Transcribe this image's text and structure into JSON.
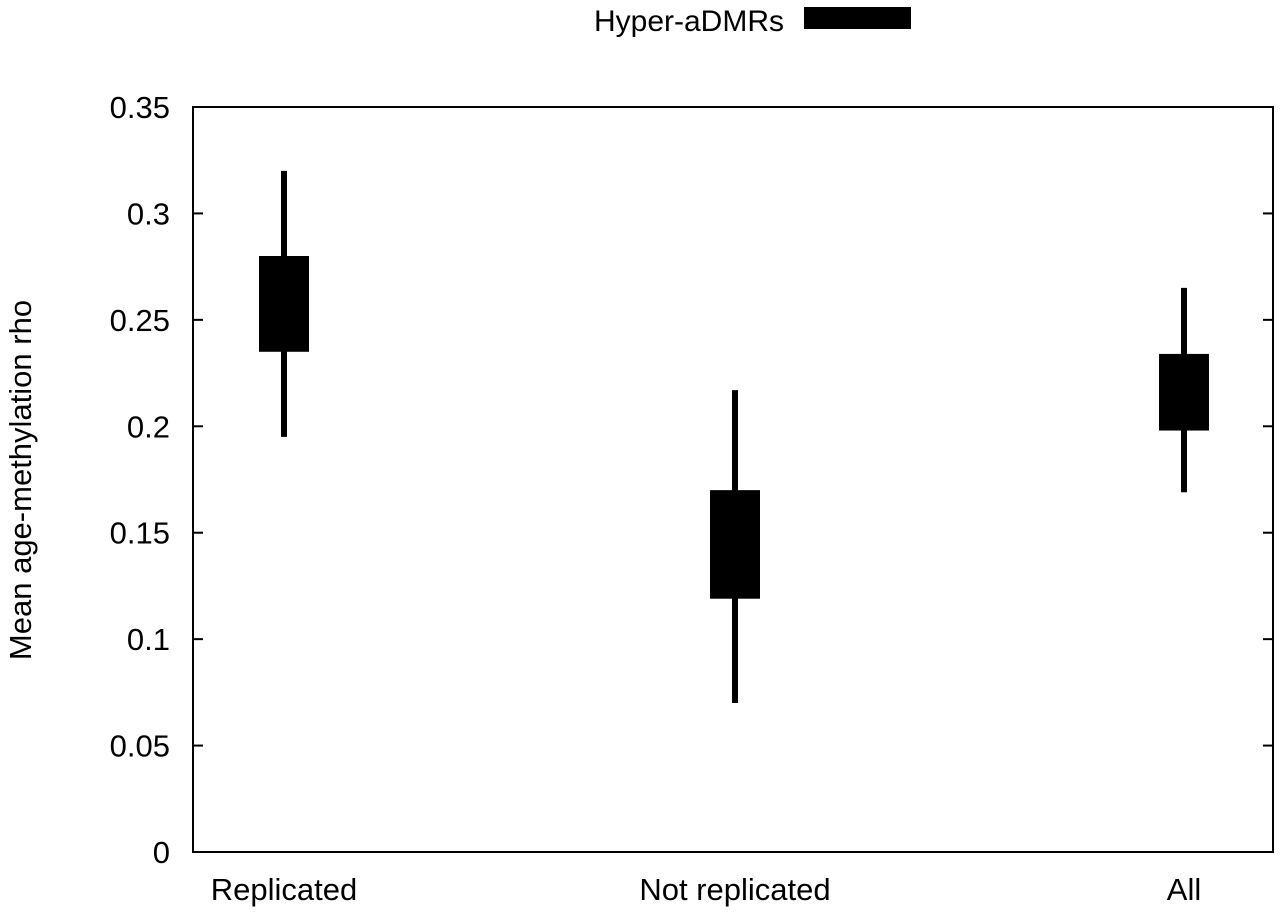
{
  "chart_data": {
    "type": "candlestick",
    "title": "",
    "xlabel": "",
    "ylabel": "Mean age-methylation rho",
    "categories": [
      "Replicated",
      "Not replicated",
      "All"
    ],
    "ylim": [
      0,
      0.35
    ],
    "yticks": [
      0,
      0.05,
      0.1,
      0.15,
      0.2,
      0.25,
      0.3,
      0.35
    ],
    "ytick_labels": [
      "0",
      "0.05",
      "0.1",
      "0.15",
      "0.2",
      "0.25",
      "0.3",
      "0.35"
    ],
    "grid": false,
    "legend_position": "top-center",
    "series": [
      {
        "name": "Hyper-aDMRs",
        "color": "#000000",
        "boxes": [
          {
            "category": "Replicated",
            "whisker_low": 0.195,
            "box_low": 0.235,
            "box_high": 0.28,
            "whisker_high": 0.32
          },
          {
            "category": "Not replicated",
            "whisker_low": 0.07,
            "box_low": 0.119,
            "box_high": 0.17,
            "whisker_high": 0.217
          },
          {
            "category": "All",
            "whisker_low": 0.169,
            "box_low": 0.198,
            "box_high": 0.234,
            "whisker_high": 0.265
          }
        ]
      }
    ]
  }
}
